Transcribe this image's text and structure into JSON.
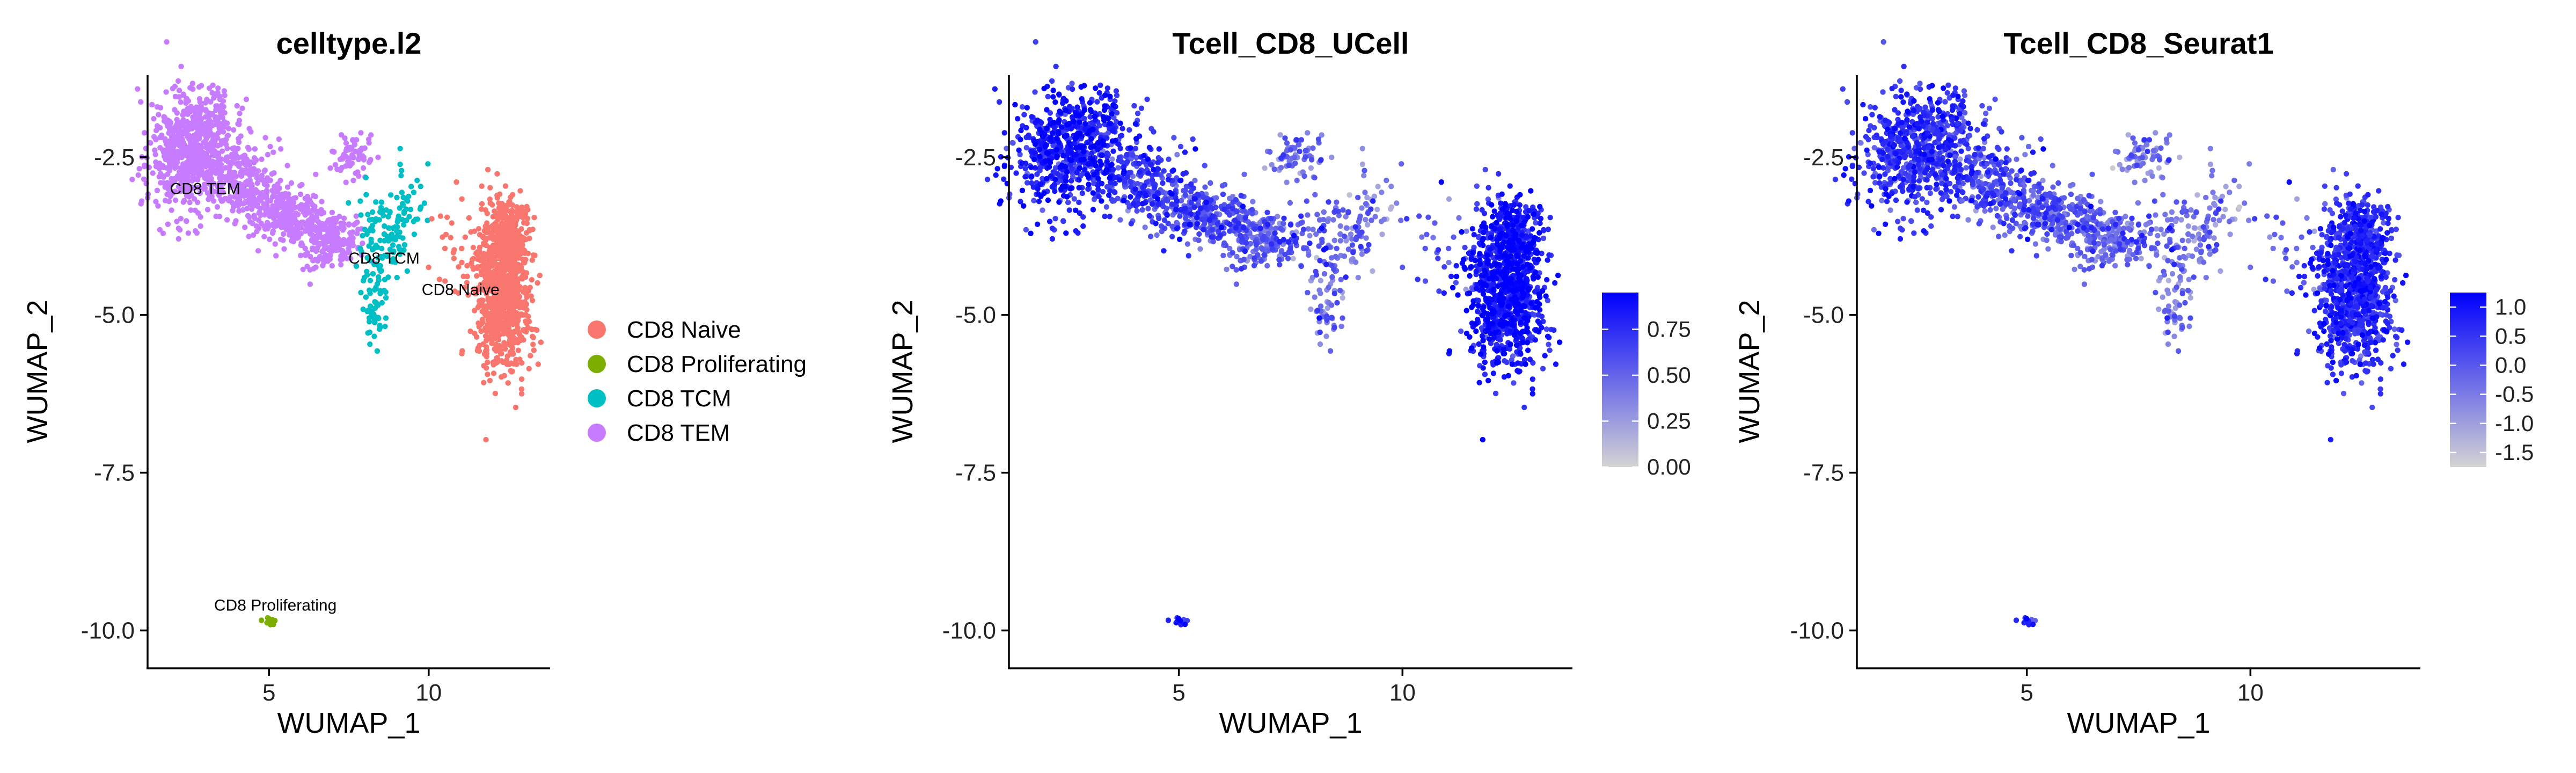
{
  "chart_data": [
    {
      "type": "scatter",
      "title": "celltype.l2",
      "xlabel": "WUMAP_1",
      "ylabel": "WUMAP_2",
      "xlim": [
        1.2,
        13.8
      ],
      "ylim": [
        -10.6,
        -1.2
      ],
      "xticks": [
        5,
        10
      ],
      "yticks": [
        -2.5,
        -5.0,
        -7.5,
        -10.0
      ],
      "xtick_labels": [
        "5",
        "10"
      ],
      "ytick_labels": [
        "-2.5",
        "-5.0",
        "-7.5",
        "-10.0"
      ],
      "legend": {
        "placement": "right",
        "entries": [
          {
            "label": "CD8 Naive",
            "color": "#F8766D"
          },
          {
            "label": "CD8 Proliferating",
            "color": "#7CAE00"
          },
          {
            "label": "CD8 TCM",
            "color": "#00BFC4"
          },
          {
            "label": "CD8 TEM",
            "color": "#C77CFF"
          }
        ]
      },
      "cluster_labels": [
        {
          "text": "CD8 TEM",
          "x": 3.0,
          "y": -3.0
        },
        {
          "text": "CD8 TCM",
          "x": 8.6,
          "y": -4.1
        },
        {
          "text": "CD8 Naive",
          "x": 11.0,
          "y": -4.6
        },
        {
          "text": "CD8 Proliferating",
          "x": 5.2,
          "y": -9.6
        }
      ]
    },
    {
      "type": "scatter",
      "title": "Tcell_CD8_UCell",
      "xlabel": "WUMAP_1",
      "ylabel": "WUMAP_2",
      "xlim": [
        1.2,
        13.8
      ],
      "ylim": [
        -10.6,
        -1.2
      ],
      "xticks": [
        5,
        10
      ],
      "yticks": [
        -2.5,
        -5.0,
        -7.5,
        -10.0
      ],
      "xtick_labels": [
        "5",
        "10"
      ],
      "ytick_labels": [
        "-2.5",
        "-5.0",
        "-7.5",
        "-10.0"
      ],
      "colorbar": {
        "min": 0.0,
        "max": 0.95,
        "ticks": [
          0.0,
          0.25,
          0.5,
          0.75
        ],
        "tick_labels": [
          "0.00",
          "0.25",
          "0.50",
          "0.75"
        ],
        "low_color": "#D3D3D3",
        "high_color": "#0000FF"
      }
    },
    {
      "type": "scatter",
      "title": "Tcell_CD8_Seurat1",
      "xlabel": "WUMAP_1",
      "ylabel": "WUMAP_2",
      "xlim": [
        1.2,
        13.8
      ],
      "ylim": [
        -10.6,
        -1.2
      ],
      "xticks": [
        5,
        10
      ],
      "yticks": [
        -2.5,
        -5.0,
        -7.5,
        -10.0
      ],
      "xtick_labels": [
        "5",
        "10"
      ],
      "ytick_labels": [
        "-2.5",
        "-5.0",
        "-7.5",
        "-10.0"
      ],
      "colorbar": {
        "min": -1.75,
        "max": 1.25,
        "ticks": [
          -1.5,
          -1.0,
          -0.5,
          0.0,
          0.5,
          1.0
        ],
        "tick_labels": [
          "-1.5",
          "-1.0",
          "-0.5",
          "0.0",
          "0.5",
          "1.0"
        ],
        "low_color": "#D3D3D3",
        "high_color": "#0000FF"
      }
    }
  ],
  "clusters": [
    {
      "name": "CD8 TEM",
      "segments": [
        {
          "x": 2.2,
          "y": -2.5,
          "n": 420,
          "sx": 0.55,
          "sy": 0.45,
          "score": 0.82
        },
        {
          "x": 3.0,
          "y": -2.2,
          "n": 260,
          "sx": 0.45,
          "sy": 0.4,
          "score": 0.85
        },
        {
          "x": 4.2,
          "y": -2.9,
          "n": 230,
          "sx": 0.55,
          "sy": 0.3,
          "score": 0.72
        },
        {
          "x": 5.5,
          "y": -3.4,
          "n": 260,
          "sx": 0.6,
          "sy": 0.22,
          "score": 0.62
        },
        {
          "x": 6.8,
          "y": -3.8,
          "n": 240,
          "sx": 0.55,
          "sy": 0.22,
          "score": 0.55
        },
        {
          "x": 7.6,
          "y": -2.5,
          "n": 70,
          "sx": 0.35,
          "sy": 0.18,
          "score": 0.45
        }
      ]
    },
    {
      "name": "CD8 TCM",
      "segments": [
        {
          "x": 8.6,
          "y": -3.8,
          "n": 110,
          "sx": 0.4,
          "sy": 0.4,
          "score": 0.55
        },
        {
          "x": 8.3,
          "y": -4.9,
          "n": 50,
          "sx": 0.18,
          "sy": 0.3,
          "score": 0.45
        },
        {
          "x": 9.3,
          "y": -3.3,
          "n": 30,
          "sx": 0.25,
          "sy": 0.4,
          "score": 0.4
        }
      ]
    },
    {
      "name": "CD8 Naive",
      "segments": [
        {
          "x": 12.3,
          "y": -4.6,
          "n": 900,
          "sx": 0.42,
          "sy": 0.6,
          "score": 0.88
        },
        {
          "x": 12.5,
          "y": -3.7,
          "n": 180,
          "sx": 0.3,
          "sy": 0.25,
          "score": 0.86
        },
        {
          "x": 10.9,
          "y": -3.8,
          "n": 30,
          "sx": 0.5,
          "sy": 0.4,
          "score": 0.6
        }
      ]
    },
    {
      "name": "CD8 Proliferating",
      "segments": [
        {
          "x": 5.0,
          "y": -9.85,
          "n": 12,
          "sx": 0.12,
          "sy": 0.03,
          "score": 0.9
        }
      ]
    }
  ]
}
